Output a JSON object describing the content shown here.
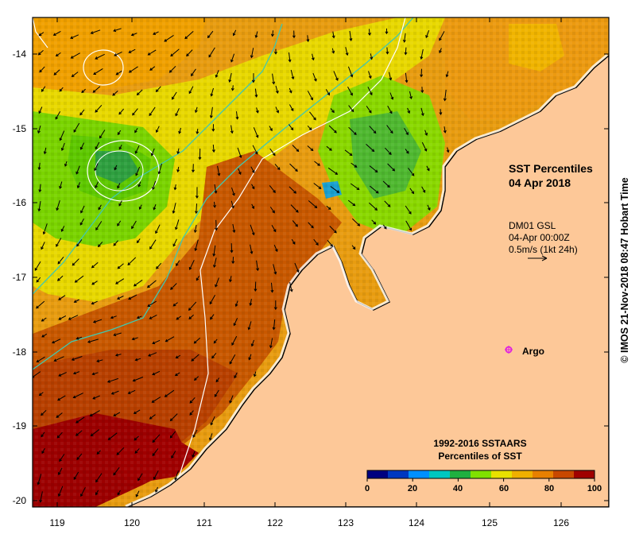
{
  "title": {
    "line1": "SST Percentiles",
    "line2": "04 Apr 2018"
  },
  "wind_info": {
    "source": "DM01 GSL",
    "time": "04-Apr 00:00Z",
    "scale": "0.5m/s (1kt 24h)"
  },
  "argo": {
    "label": "Argo",
    "color": "#e020e0"
  },
  "colorbar": {
    "title1": "1992-2016 SSTAARS",
    "title2": "Percentiles of SST",
    "ticks": [
      "0",
      "20",
      "40",
      "60",
      "80",
      "100"
    ],
    "colors": [
      "#000080",
      "#0038c0",
      "#0090ff",
      "#00c8c0",
      "#20b040",
      "#80e000",
      "#e8e000",
      "#f0b000",
      "#e88000",
      "#c84800",
      "#a00000"
    ]
  },
  "axes": {
    "lat_labels": [
      "-14",
      "-15",
      "-16",
      "-17",
      "-18",
      "-19",
      "-20"
    ],
    "lon_labels": [
      "119",
      "120",
      "121",
      "122",
      "123",
      "124",
      "125",
      "126"
    ]
  },
  "land_color": "#fdc898",
  "copyright": "© IMOS 21-Nov-2018 08:47 Hobart Time"
}
